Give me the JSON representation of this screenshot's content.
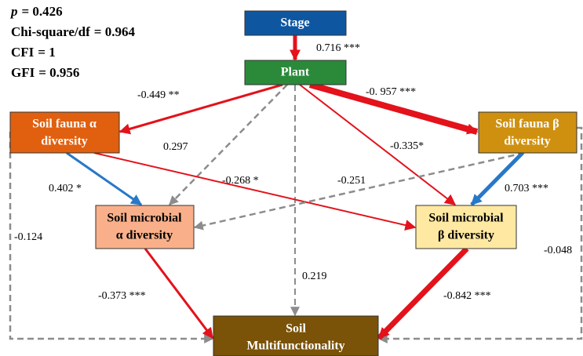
{
  "fit": [
    [
      "p",
      "= 0.426"
    ],
    [
      "Chi-square/df",
      "= 0.964"
    ],
    [
      "CFI",
      "= 1"
    ],
    [
      "GFI",
      "= 0.956"
    ]
  ],
  "nodes": [
    {
      "lines": [
        "Stage"
      ]
    },
    {
      "lines": [
        "Plant"
      ]
    },
    {
      "lines": [
        "Soil fauna α",
        "diversity"
      ]
    },
    {
      "lines": [
        "Soil fauna β",
        "diversity"
      ]
    },
    {
      "lines": [
        "Soil microbial",
        "α diversity"
      ]
    },
    {
      "lines": [
        "Soil microbial",
        "β diversity"
      ]
    },
    {
      "lines": [
        "Soil",
        "Multifunctionality"
      ]
    }
  ],
  "paths": [
    "0.716 ***",
    "-0.449 **",
    "-0. 957 ***",
    "0.297",
    "0.219",
    "-0.335*",
    "0.402 *",
    "-0.268 *",
    "-0.251",
    "0.703 ***",
    "-0.124",
    "-0.048",
    "-0.373 ***",
    "-0.842 ***"
  ]
}
